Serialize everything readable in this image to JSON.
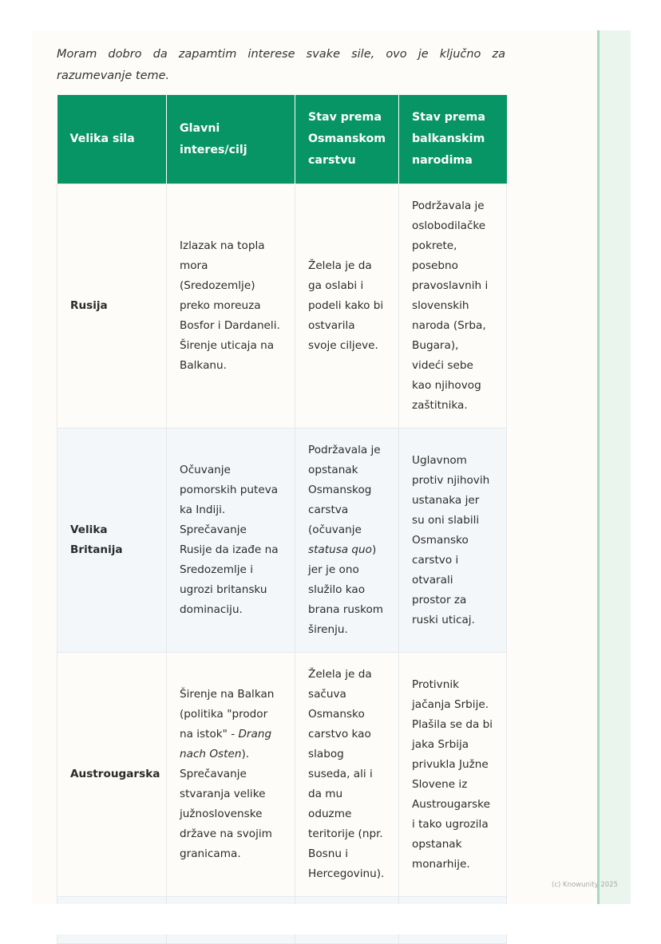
{
  "intro": "Moram dobro da zapamtim interese svake sile, ovo je ključno za razumevanje teme.",
  "table": {
    "headers": [
      "Velika sila",
      "Glavni interes/cilj",
      "Stav prema Osmanskom carstvu",
      "Stav prema balkanskim narodima"
    ],
    "rows": [
      [
        "Rusija",
        "Izlazak na topla mora (Sredozemlje) preko moreuza Bosfor i Dardaneli. Širenje uticaja na Balkanu.",
        "Želela je da ga oslabi i podeli kako bi ostvarila svoje ciljeve.",
        "Podržavala je oslobodilačke pokrete, posebno pravoslavnih i slovenskih naroda (Srba, Bugara), videći sebe kao njihovog zaštitnika."
      ],
      [
        "Velika Britanija",
        "Očuvanje pomorskih puteva ka Indiji. Sprečavanje Rusije da izađe na Sredozemlje i ugrozi britansku dominaciju.",
        {
          "pre": "Podržavala je opstanak Osmanskog carstva (očuvanje ",
          "em": "statusa quo",
          "post": ") jer je ono služilo kao brana ruskom širenju."
        },
        "Uglavnom protiv njihovih ustanaka jer su oni slabili Osmansko carstvo i otvarali prostor za ruski uticaj."
      ],
      [
        "Austrougarska",
        {
          "pre": "Širenje na Balkan (politika \"prodor na istok\" - ",
          "em": "Drang nach Osten",
          "post": "). Sprečavanje stvaranja velike južnoslovenske države na svojim granicama."
        },
        "Želela je da sačuva Osmansko carstvo kao slabog suseda, ali i da mu oduzme teritorije (npr. Bosnu i Hercegovinu).",
        "Protivnik jačanja Srbije. Plašila se da bi jaka Srbija privukla Južne Slovene iz Austrougarske i tako ugrozila opstanak monarhije."
      ]
    ]
  },
  "footer": "(c) Knowunity 2025",
  "colors": {
    "header": "#079566",
    "sidebar": "#eaf5ee"
  }
}
